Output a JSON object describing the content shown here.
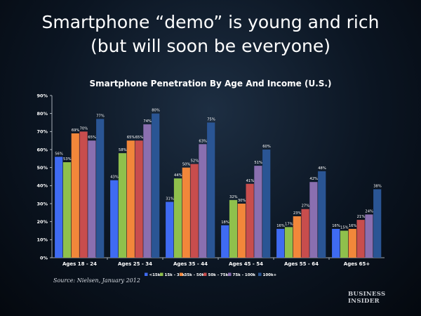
{
  "headline": {
    "line1": "Smartphone “demo” is young and rich",
    "line2": "(but will soon be everyone)"
  },
  "source": "Source: Nielsen, January 2012",
  "logo": {
    "line1": "BUSINESS",
    "line2": "INSIDER"
  },
  "chart_data": {
    "type": "bar",
    "title": "Smartphone Penetration By Age And Income (U.S.)",
    "xlabel": "",
    "ylabel": "",
    "ylim": [
      0,
      90
    ],
    "yticks": [
      "0%",
      "10%",
      "20%",
      "30%",
      "40%",
      "50%",
      "60%",
      "70%",
      "80%",
      "90%"
    ],
    "grid": false,
    "legend": "bottom",
    "categories": [
      "Ages 18 - 24",
      "Ages 25 - 34",
      "Ages 35 - 44",
      "Ages 45 - 54",
      "Ages 55 - 64",
      "Ages 65+"
    ],
    "series": [
      {
        "name": "<15k",
        "color": "#3f6bf2",
        "values": [
          56,
          43,
          31,
          18,
          16,
          16
        ],
        "labels": [
          "56%",
          "43%",
          "31%",
          "18%",
          "16%",
          "16%"
        ]
      },
      {
        "name": "15k - 35k",
        "color": "#8fc04c",
        "values": [
          53,
          58,
          44,
          32,
          17,
          15
        ],
        "labels": [
          "53%",
          "58%",
          "44%",
          "32%",
          "17%",
          "15%"
        ]
      },
      {
        "name": "35k - 50k",
        "color": "#f2873a",
        "values": [
          69,
          65,
          50,
          30,
          23,
          16
        ],
        "labels": [
          "69%",
          "65%",
          "50%",
          "30%",
          "23%",
          "16%"
        ]
      },
      {
        "name": "50k - 75k",
        "color": "#c84d4d",
        "values": [
          70,
          65,
          52,
          41,
          27,
          21
        ],
        "labels": [
          "70%",
          "65%",
          "52%",
          "41%",
          "27%",
          "21%"
        ]
      },
      {
        "name": "75k - 100k",
        "color": "#8a6fb0",
        "values": [
          65,
          74,
          63,
          51,
          42,
          24
        ],
        "labels": [
          "65%",
          "74%",
          "63%",
          "51%",
          "42%",
          "24%"
        ]
      },
      {
        "name": "100k+",
        "color": "#2a5594",
        "values": [
          77,
          80,
          75,
          60,
          48,
          38
        ],
        "labels": [
          "77%",
          "80%",
          "75%",
          "60%",
          "48%",
          "38%"
        ]
      }
    ]
  }
}
